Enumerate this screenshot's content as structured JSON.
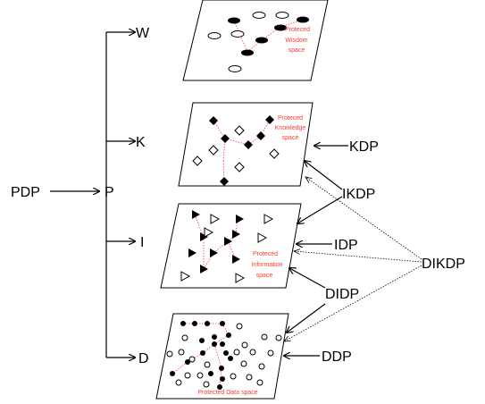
{
  "labels": {
    "pdp": "PDP",
    "p": "P",
    "w": "W",
    "k": "K",
    "i": "I",
    "d": "D",
    "kdp": "KDP",
    "ikdp": "IKDP",
    "idp": "IDP",
    "didp": "DIDP",
    "dikdp": "DIKDP",
    "ddp": "DDP"
  },
  "planes": {
    "wisdom": [
      "Proteced",
      "Wisdom",
      "space"
    ],
    "knowledge": [
      "Proteced",
      "Knowledge",
      "space"
    ],
    "information": [
      "Proteced",
      "Information",
      "space"
    ],
    "data": [
      "Protected Data space"
    ]
  },
  "colors": {
    "line": "#000000",
    "link": "#ff3b30",
    "text_red": "#ff3b30"
  }
}
